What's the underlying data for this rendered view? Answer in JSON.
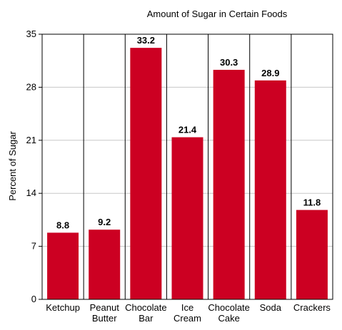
{
  "chart_data": {
    "type": "bar",
    "title": "Amount of Sugar in Certain Foods",
    "xlabel": "",
    "ylabel": "Percent of Sugar",
    "ylim": [
      0,
      35
    ],
    "yticks": [
      0,
      7,
      14,
      21,
      28,
      35
    ],
    "grid": true,
    "categories": [
      [
        "Ketchup"
      ],
      [
        "Peanut",
        "Butter"
      ],
      [
        "Chocolate",
        "Bar"
      ],
      [
        "Ice",
        "Cream"
      ],
      [
        "Chocolate",
        "Cake"
      ],
      [
        "Soda"
      ],
      [
        "Crackers"
      ]
    ],
    "values": [
      8.8,
      9.2,
      33.2,
      21.4,
      30.3,
      28.9,
      11.8
    ],
    "value_labels": [
      "8.8",
      "9.2",
      "33.2",
      "21.4",
      "30.3",
      "28.9",
      "11.8"
    ],
    "colors": {
      "bar": "#cc0022",
      "grid": "#c8c8c8",
      "vgrid": "#000000",
      "axis": "#000000"
    }
  }
}
